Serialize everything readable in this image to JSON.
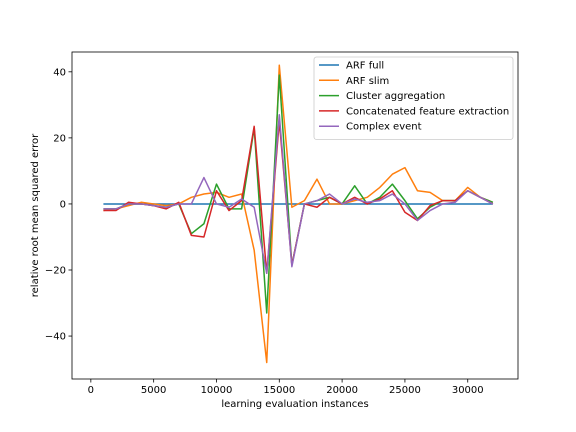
{
  "chart_data": {
    "type": "line",
    "xlabel": "learning evaluation instances",
    "ylabel": "relative root mean squared error",
    "xlim": [
      -1500,
      34000
    ],
    "ylim": [
      -53,
      46
    ],
    "xticks": [
      0,
      5000,
      10000,
      15000,
      20000,
      25000,
      30000
    ],
    "xtick_labels": [
      "0",
      "5000",
      "10000",
      "15000",
      "20000",
      "25000",
      "30000"
    ],
    "yticks": [
      -40,
      -20,
      0,
      20,
      40
    ],
    "ytick_labels": [
      "−40",
      "−20",
      "0",
      "20",
      "40"
    ],
    "grid": false,
    "legend_position": "top-right",
    "x": [
      1000,
      2000,
      3000,
      4000,
      5000,
      6000,
      7000,
      8000,
      9000,
      10000,
      11000,
      12000,
      13000,
      14000,
      15000,
      16000,
      17000,
      18000,
      19000,
      20000,
      21000,
      22000,
      23000,
      24000,
      25000,
      26000,
      27000,
      28000,
      29000,
      30000,
      31000,
      32000
    ],
    "series": [
      {
        "name": "ARF full",
        "color": "#1f77b4",
        "values": [
          0,
          0,
          0,
          0,
          0,
          0,
          0,
          0,
          0,
          0,
          0,
          0,
          0,
          0,
          0,
          0,
          0,
          0,
          0,
          0,
          0,
          0,
          0,
          0,
          0,
          0,
          0,
          0,
          0,
          0,
          0,
          0
        ]
      },
      {
        "name": "ARF slim",
        "color": "#ff7f0e",
        "values": [
          -2,
          -1.5,
          -0.5,
          0.5,
          0,
          -0.5,
          0,
          2,
          3,
          3.5,
          2,
          3,
          -14,
          -48,
          42,
          -1,
          1,
          7.5,
          0,
          0,
          1,
          2,
          5,
          9,
          11,
          4,
          3.5,
          1,
          1,
          5,
          2,
          0.5
        ]
      },
      {
        "name": "Cluster aggregation",
        "color": "#2ca02c",
        "values": [
          -1.5,
          -1.5,
          0,
          0,
          -0.5,
          -1,
          0,
          -9,
          -6,
          6,
          -1.5,
          -1.5,
          23,
          -33,
          39,
          -18.5,
          0,
          1,
          2,
          0,
          5.5,
          0,
          2,
          6,
          1,
          -4.5,
          -1,
          1,
          1,
          4,
          2,
          0.5
        ]
      },
      {
        "name": "Concatenated feature extraction",
        "color": "#d62728",
        "values": [
          -2,
          -2,
          0.5,
          0,
          -0.5,
          -1.5,
          0.5,
          -9.5,
          -10,
          4,
          -2,
          1,
          23.5,
          -21,
          25,
          -18.5,
          0,
          -1,
          2,
          0,
          2,
          0,
          1.5,
          4,
          -2.5,
          -5,
          -0.5,
          1,
          1,
          4,
          2,
          0
        ]
      },
      {
        "name": "Complex event",
        "color": "#9467bd",
        "values": [
          -1.5,
          -1.5,
          0,
          0,
          -0.5,
          -1,
          0,
          0,
          8,
          0,
          -1,
          1.5,
          -1,
          -21,
          27,
          -19,
          0,
          1,
          3,
          0,
          1.5,
          0.5,
          1,
          3,
          0,
          -5,
          -2,
          0,
          0.5,
          4,
          2,
          0
        ]
      }
    ]
  }
}
